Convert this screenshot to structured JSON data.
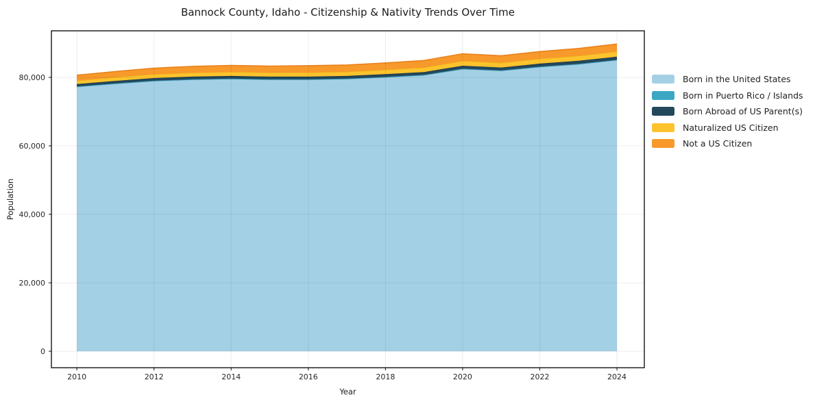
{
  "chart_data": {
    "type": "area",
    "stacked": true,
    "title": "Bannock County, Idaho - Citizenship & Nativity Trends Over Time",
    "xlabel": "Year",
    "ylabel": "Population",
    "x": [
      2010,
      2011,
      2012,
      2013,
      2014,
      2015,
      2016,
      2017,
      2018,
      2019,
      2020,
      2021,
      2022,
      2023,
      2024
    ],
    "series": [
      {
        "name": "Born in the United States",
        "color": "#a4d0e6",
        "edge": "#8fc2dc",
        "values": [
          77200,
          78100,
          78900,
          79300,
          79500,
          79300,
          79300,
          79500,
          80000,
          80600,
          82400,
          81900,
          83000,
          83800,
          85000
        ]
      },
      {
        "name": "Born in Puerto Rico / Islands",
        "color": "#3ba7c4",
        "edge": "#3391ab",
        "values": [
          150,
          150,
          150,
          150,
          150,
          150,
          150,
          150,
          150,
          150,
          150,
          150,
          150,
          150,
          150
        ]
      },
      {
        "name": "Born Abroad of US Parent(s)",
        "color": "#23485c",
        "edge": "#1c3a4b",
        "values": [
          700,
          720,
          750,
          760,
          770,
          760,
          760,
          770,
          800,
          820,
          850,
          840,
          860,
          880,
          900
        ]
      },
      {
        "name": "Naturalized US Citizen",
        "color": "#fcc32d",
        "edge": "#eeb31f",
        "values": [
          1000,
          1050,
          1100,
          1150,
          1180,
          1180,
          1200,
          1220,
          1280,
          1320,
          1400,
          1380,
          1420,
          1460,
          1500
        ]
      },
      {
        "name": "Not a US Citizen",
        "color": "#f8992b",
        "edge": "#e8821c",
        "values": [
          1600,
          1700,
          1800,
          1850,
          1900,
          1900,
          2000,
          1980,
          2000,
          2050,
          2100,
          2050,
          2100,
          2150,
          2200
        ]
      }
    ],
    "xticks": [
      2010,
      2012,
      2014,
      2016,
      2018,
      2020,
      2022,
      2024
    ],
    "xtick_labels": [
      "2010",
      "2012",
      "2014",
      "2016",
      "2018",
      "2020",
      "2022",
      "2024"
    ],
    "yticks": [
      0,
      20000,
      40000,
      60000,
      80000
    ],
    "ytick_labels": [
      "0",
      "20,000",
      "40,000",
      "60,000",
      "80,000"
    ],
    "xlim": [
      2009.34,
      2024.71
    ],
    "ylim": [
      -4800,
      93600
    ],
    "grid": true,
    "legend_position": "right",
    "background_color": "#ffffff",
    "grid_color": "rgba(0,0,0,0.075)",
    "axis_color": "#000000",
    "tick_color": "#262626",
    "tick_label_color": "#262626"
  }
}
